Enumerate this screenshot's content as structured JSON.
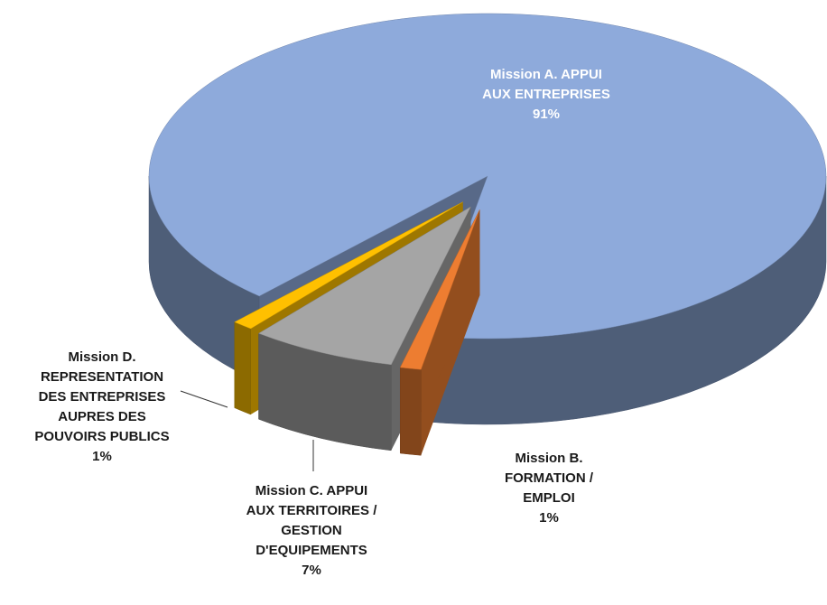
{
  "chart_data": {
    "type": "pie",
    "categories": [
      "Mission A. APPUI\nAUX ENTREPRISES",
      "Mission B.\nFORMATION /\nEMPLOI",
      "Mission C. APPUI\nAUX TERRITOIRES /\nGESTION\nD'EQUIPEMENTS",
      "Mission D.\nREPRESENTATION\nDES ENTREPRISES\nAUPRES DES\nPOUVOIRS PUBLICS"
    ],
    "values": [
      91,
      1,
      7,
      1
    ],
    "value_labels": [
      "91%",
      "1%",
      "7%",
      "1%"
    ],
    "colors": [
      "#8eaadb",
      "#ed7d31",
      "#a5a5a5",
      "#ffc000"
    ]
  }
}
